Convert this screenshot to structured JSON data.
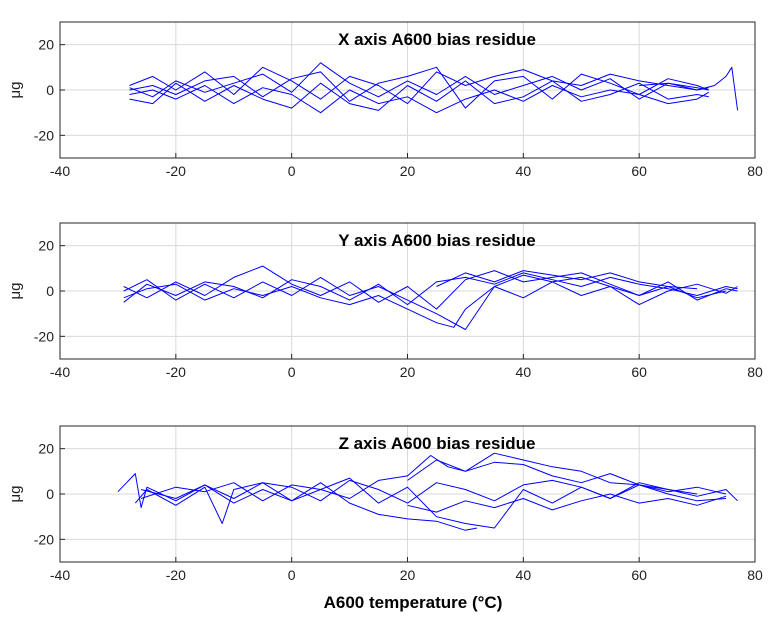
{
  "chart_data": [
    {
      "type": "line",
      "title": "X axis A600 bias residue",
      "xlabel": "",
      "ylabel": "μg",
      "xlim": [
        -40,
        80
      ],
      "ylim": [
        -30,
        30
      ],
      "xticks": [
        "-40",
        "-20",
        "0",
        "20",
        "40",
        "60",
        "80"
      ],
      "yticks": [
        "20",
        "0",
        "-20"
      ],
      "grid": true,
      "series_color": "#0000ff",
      "series": [
        {
          "x": [
            -28,
            -24,
            -20,
            -15,
            -10,
            -5,
            0,
            5,
            10,
            15,
            20,
            25,
            30,
            35,
            40,
            45,
            50,
            55,
            60,
            65,
            70,
            72
          ],
          "y": [
            0,
            2,
            -2,
            4,
            6,
            -3,
            5,
            8,
            -5,
            3,
            6,
            10,
            -8,
            4,
            6,
            -4,
            7,
            3,
            -2,
            5,
            2,
            0
          ]
        },
        {
          "x": [
            -28,
            -24,
            -20,
            -15,
            -10,
            -5,
            0,
            5,
            10,
            15,
            20,
            25,
            30,
            35,
            40,
            45,
            50,
            55,
            60,
            65,
            70,
            72
          ],
          "y": [
            -4,
            -6,
            3,
            -5,
            2,
            -4,
            -8,
            3,
            -6,
            -9,
            2,
            -5,
            4,
            -6,
            -3,
            4,
            -5,
            -2,
            3,
            -4,
            -2,
            -3
          ]
        },
        {
          "x": [
            -28,
            -24,
            -20,
            -15,
            -10,
            -5,
            0,
            5,
            10,
            15,
            20,
            25,
            30,
            35,
            40,
            45,
            50,
            55,
            60,
            65,
            70,
            72
          ],
          "y": [
            2,
            6,
            0,
            8,
            -2,
            10,
            4,
            -4,
            6,
            2,
            -6,
            8,
            2,
            6,
            9,
            4,
            2,
            7,
            4,
            2,
            0,
            1
          ]
        },
        {
          "x": [
            -28,
            -24,
            -20,
            -15,
            -10,
            -5,
            0,
            5,
            10,
            15,
            20,
            25,
            30,
            35,
            40,
            45,
            50,
            55,
            60,
            65,
            70,
            72
          ],
          "y": [
            -2,
            0,
            -4,
            2,
            -6,
            1,
            -2,
            -10,
            0,
            -6,
            -3,
            -10,
            -4,
            0,
            -5,
            2,
            -3,
            0,
            -2,
            -6,
            -4,
            -1
          ]
        },
        {
          "x": [
            -28,
            -24,
            -20,
            -15,
            -10,
            -5,
            0,
            5,
            10,
            15,
            20,
            25,
            30,
            35,
            40,
            45,
            50,
            55,
            60,
            65,
            70,
            72
          ],
          "y": [
            1,
            -3,
            4,
            -1,
            3,
            7,
            -1,
            12,
            3,
            -3,
            4,
            -2,
            6,
            -2,
            2,
            6,
            0,
            5,
            -4,
            3,
            1,
            0
          ]
        },
        {
          "x": [
            60,
            65,
            70,
            73,
            75,
            76,
            77
          ],
          "y": [
            2,
            3,
            0,
            2,
            6,
            10,
            -9
          ]
        }
      ]
    },
    {
      "type": "line",
      "title": "Y  axis A600 bias residue",
      "xlabel": "",
      "ylabel": "μg",
      "xlim": [
        -40,
        80
      ],
      "ylim": [
        -30,
        30
      ],
      "xticks": [
        "-40",
        "-20",
        "0",
        "20",
        "40",
        "60",
        "80"
      ],
      "yticks": [
        "20",
        "0",
        "-20"
      ],
      "grid": true,
      "series_color": "#0000ff",
      "series": [
        {
          "x": [
            -29,
            -25,
            -20,
            -15,
            -10,
            -5,
            0,
            5,
            10,
            15,
            20,
            25,
            30,
            35,
            40,
            45,
            50,
            55,
            60,
            65,
            70,
            75,
            77
          ],
          "y": [
            -5,
            3,
            -2,
            4,
            2,
            -3,
            5,
            2,
            -4,
            3,
            -6,
            4,
            6,
            3,
            8,
            5,
            2,
            6,
            3,
            1,
            -2,
            2,
            1
          ]
        },
        {
          "x": [
            -29,
            -25,
            -20,
            -15,
            -10,
            -5,
            0,
            5,
            10,
            15,
            20,
            25,
            30,
            35,
            40,
            45,
            50,
            55,
            60,
            65,
            70,
            75,
            77
          ],
          "y": [
            2,
            -3,
            4,
            -2,
            6,
            11,
            3,
            -2,
            4,
            -5,
            2,
            -8,
            5,
            9,
            4,
            6,
            8,
            3,
            -2,
            4,
            -4,
            1,
            0
          ]
        },
        {
          "x": [
            -29,
            -25,
            -20,
            -15,
            -10,
            -5,
            0,
            5,
            10,
            15,
            20,
            25,
            30,
            35,
            40,
            45,
            50,
            55,
            60,
            65,
            70,
            75,
            77
          ],
          "y": [
            0,
            5,
            -4,
            3,
            -3,
            4,
            -2,
            6,
            -2,
            2,
            -4,
            -10,
            -17,
            2,
            -3,
            4,
            -2,
            2,
            -6,
            0,
            3,
            -1,
            2
          ]
        },
        {
          "x": [
            -29,
            -25,
            -20,
            -15,
            -10,
            -5,
            0,
            5,
            10,
            15,
            20,
            25,
            28,
            30,
            35,
            40,
            45,
            50,
            55,
            60,
            65,
            70,
            75
          ],
          "y": [
            -3,
            1,
            3,
            -4,
            1,
            -2,
            2,
            -3,
            -6,
            -2,
            -8,
            -14,
            -16,
            -8,
            2,
            7,
            4,
            6,
            2,
            -2,
            2,
            -3,
            0
          ]
        },
        {
          "x": [
            25,
            30,
            35,
            40,
            45,
            50,
            55,
            60,
            65,
            70
          ],
          "y": [
            2,
            8,
            4,
            9,
            7,
            5,
            8,
            4,
            2,
            1
          ]
        }
      ]
    },
    {
      "type": "line",
      "title": "Z  axis A600 bias residue",
      "xlabel": "A600 temperature (°C)",
      "ylabel": "μg",
      "xlim": [
        -40,
        80
      ],
      "ylim": [
        -30,
        30
      ],
      "xticks": [
        "-40",
        "-20",
        "0",
        "20",
        "40",
        "60",
        "80"
      ],
      "yticks": [
        "20",
        "0",
        "-20"
      ],
      "grid": true,
      "series_color": "#0000ff",
      "series": [
        {
          "x": [
            -30,
            -27,
            -26,
            -25,
            -20,
            -15,
            -10,
            -5,
            0,
            5,
            10,
            15,
            20,
            25,
            30,
            35,
            40,
            45,
            50,
            55,
            60,
            65,
            70,
            75,
            77
          ],
          "y": [
            1,
            9,
            -6,
            3,
            -3,
            4,
            -2,
            5,
            3,
            -3,
            6,
            2,
            -4,
            5,
            2,
            -3,
            4,
            6,
            3,
            -2,
            5,
            2,
            -1,
            2,
            -3
          ]
        },
        {
          "x": [
            -27,
            -25,
            -20,
            -15,
            -12,
            -10,
            -5,
            0,
            5,
            10,
            15,
            20,
            25,
            30,
            35,
            40,
            45,
            50,
            55,
            60,
            65,
            70,
            75
          ],
          "y": [
            -4,
            2,
            -5,
            3,
            -13,
            2,
            5,
            -3,
            2,
            7,
            -4,
            3,
            -10,
            -13,
            -15,
            2,
            -4,
            3,
            -2,
            4,
            0,
            -3,
            -2
          ]
        },
        {
          "x": [
            -26,
            -20,
            -15,
            -10,
            -5,
            0,
            5,
            10,
            15,
            20,
            25,
            30,
            32
          ],
          "y": [
            2,
            -2,
            4,
            -4,
            2,
            -3,
            5,
            -4,
            -9,
            -11,
            -12,
            -16,
            -15
          ]
        },
        {
          "x": [
            -26,
            -20,
            -15,
            -10,
            -5,
            0,
            5,
            10,
            15,
            20,
            24,
            27,
            30,
            35,
            40,
            45,
            50,
            55,
            60,
            65,
            70,
            75
          ],
          "y": [
            -2,
            3,
            1,
            5,
            -3,
            4,
            2,
            -2,
            6,
            8,
            17,
            12,
            10,
            14,
            13,
            8,
            5,
            9,
            4,
            1,
            3,
            0
          ]
        },
        {
          "x": [
            20,
            25,
            30,
            35,
            40,
            45,
            50,
            55,
            60,
            65,
            70
          ],
          "y": [
            6,
            15,
            10,
            18,
            15,
            12,
            10,
            5,
            4,
            2,
            0
          ]
        },
        {
          "x": [
            20,
            25,
            30,
            35,
            40,
            45,
            50,
            55,
            60,
            65,
            70,
            75
          ],
          "y": [
            -5,
            -8,
            -3,
            -6,
            -2,
            -7,
            -3,
            0,
            -4,
            -2,
            -5,
            -1
          ]
        }
      ]
    }
  ]
}
